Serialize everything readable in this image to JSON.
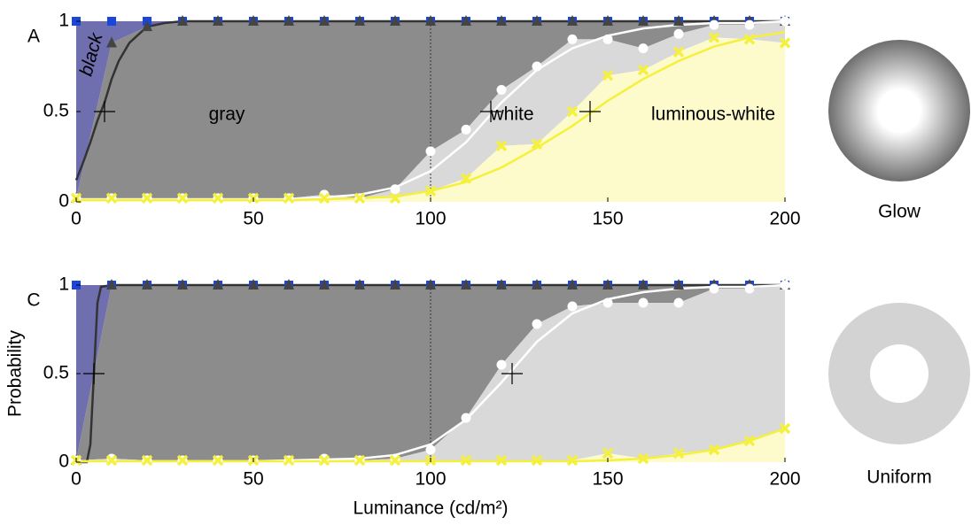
{
  "chart_data": [
    {
      "type": "line",
      "panel_label": "A",
      "x": [
        0,
        10,
        20,
        30,
        40,
        50,
        60,
        70,
        80,
        90,
        100,
        110,
        120,
        130,
        140,
        150,
        160,
        170,
        180,
        190,
        200
      ],
      "xlim": [
        0,
        200
      ],
      "xticks": [
        0,
        50,
        100,
        150,
        200
      ],
      "ylim": [
        0,
        1
      ],
      "yticks": [
        0,
        0.5,
        1
      ],
      "reference_x": 100,
      "fills": [
        "#6f6fb0",
        "#8c8c8c",
        "#d9d9d9",
        "#fdfbcb"
      ],
      "series": [
        {
          "marker": "square",
          "color": "#1a46dc",
          "values": [
            1,
            1,
            1,
            1,
            1,
            1,
            1,
            1,
            1,
            1,
            1,
            1,
            1,
            1,
            1,
            1,
            1,
            1,
            1,
            1,
            1
          ]
        },
        {
          "marker": "triangle",
          "color": "#444444",
          "values": [
            0.02,
            0.88,
            0.97,
            1,
            1,
            1,
            1,
            1,
            1,
            1,
            1,
            1,
            1,
            1,
            1,
            1,
            1,
            1,
            1,
            1,
            1
          ]
        },
        {
          "marker": "circle",
          "color": "#ffffff",
          "values": [
            0.02,
            0.02,
            0.02,
            0.02,
            0.02,
            0.02,
            0.02,
            0.04,
            0.02,
            0.07,
            0.28,
            0.4,
            0.62,
            0.75,
            0.9,
            0.9,
            0.85,
            0.93,
            0.98,
            0.98,
            1
          ]
        },
        {
          "marker": "cross",
          "color": "#f5f03c",
          "values": [
            0.02,
            0.02,
            0.02,
            0.02,
            0.02,
            0.02,
            0.02,
            0.02,
            0.02,
            0.02,
            0.06,
            0.13,
            0.31,
            0.32,
            0.5,
            0.7,
            0.73,
            0.83,
            0.91,
            0.9,
            0.88
          ]
        }
      ],
      "fits": [
        {
          "color": "#333333",
          "x": [
            0,
            2,
            4,
            6,
            8,
            10,
            12,
            15,
            20,
            25,
            30,
            200
          ],
          "values": [
            0.12,
            0.22,
            0.33,
            0.45,
            0.55,
            0.68,
            0.78,
            0.88,
            0.97,
            0.99,
            1,
            1
          ]
        },
        {
          "color": "#ffffff",
          "x": [
            0,
            10,
            20,
            30,
            40,
            50,
            60,
            70,
            80,
            90,
            100,
            110,
            120,
            130,
            140,
            150,
            160,
            170,
            180,
            190,
            200
          ],
          "values": [
            0.01,
            0.01,
            0.01,
            0.01,
            0.01,
            0.01,
            0.015,
            0.025,
            0.04,
            0.08,
            0.17,
            0.33,
            0.55,
            0.73,
            0.85,
            0.92,
            0.96,
            0.98,
            0.99,
            0.99,
            1
          ]
        },
        {
          "color": "#f5f03c",
          "x": [
            0,
            10,
            20,
            30,
            40,
            50,
            60,
            70,
            80,
            90,
            100,
            110,
            120,
            130,
            140,
            150,
            160,
            170,
            180,
            190,
            200
          ],
          "values": [
            0.01,
            0.01,
            0.01,
            0.01,
            0.01,
            0.01,
            0.01,
            0.015,
            0.02,
            0.03,
            0.06,
            0.11,
            0.19,
            0.3,
            0.42,
            0.56,
            0.68,
            0.78,
            0.86,
            0.91,
            0.94
          ]
        }
      ],
      "thresholds": [
        {
          "x": 8,
          "y": 0.5
        },
        {
          "x": 117,
          "y": 0.5
        },
        {
          "x": 145,
          "y": 0.5
        }
      ],
      "annotations": [
        "black",
        "gray",
        "white",
        "luminous-white"
      ]
    },
    {
      "type": "line",
      "panel_label": "C",
      "ylabel": "Probability",
      "xlabel": "Luminance (cd/m²)",
      "x": [
        0,
        10,
        20,
        30,
        40,
        50,
        60,
        70,
        80,
        90,
        100,
        110,
        120,
        130,
        140,
        150,
        160,
        170,
        180,
        190,
        200
      ],
      "xlim": [
        0,
        200
      ],
      "xticks": [
        0,
        50,
        100,
        150,
        200
      ],
      "ylim": [
        0,
        1
      ],
      "yticks": [
        0,
        0.5,
        1
      ],
      "reference_x": 100,
      "fills": [
        "#6f6fb0",
        "#8c8c8c",
        "#d9d9d9",
        "#fdfbcb"
      ],
      "series": [
        {
          "marker": "square",
          "color": "#1a46dc",
          "values": [
            1,
            1,
            1,
            1,
            1,
            1,
            1,
            1,
            1,
            1,
            1,
            1,
            1,
            1,
            1,
            1,
            1,
            1,
            1,
            1,
            1
          ]
        },
        {
          "marker": "triangle",
          "color": "#444444",
          "values": [
            0.01,
            1,
            1,
            1,
            1,
            1,
            1,
            1,
            1,
            1,
            1,
            1,
            1,
            1,
            1,
            1,
            1,
            1,
            1,
            1,
            1
          ]
        },
        {
          "marker": "circle",
          "color": "#ffffff",
          "values": [
            0.01,
            0.02,
            0.01,
            0.01,
            0.01,
            0.01,
            0.01,
            0.02,
            0.01,
            0.02,
            0.07,
            0.25,
            0.55,
            0.78,
            0.88,
            0.9,
            0.9,
            0.9,
            0.98,
            0.98,
            1
          ]
        },
        {
          "marker": "cross",
          "color": "#f5f03c",
          "values": [
            0.01,
            0.01,
            0.01,
            0.01,
            0.01,
            0.01,
            0.01,
            0.01,
            0.01,
            0.01,
            0.01,
            0.01,
            0.01,
            0.01,
            0.01,
            0.05,
            0.02,
            0.05,
            0.07,
            0.12,
            0.19
          ]
        }
      ],
      "fits": [
        {
          "color": "#333333",
          "x": [
            0,
            3,
            4,
            5,
            6,
            7,
            10,
            200
          ],
          "values": [
            0,
            0,
            0.1,
            0.5,
            0.9,
            0.99,
            1,
            1
          ]
        },
        {
          "color": "#ffffff",
          "x": [
            0,
            10,
            20,
            30,
            40,
            50,
            60,
            70,
            80,
            90,
            100,
            110,
            120,
            130,
            140,
            150,
            160,
            170,
            180,
            190,
            200
          ],
          "values": [
            0.005,
            0.005,
            0.005,
            0.005,
            0.005,
            0.005,
            0.01,
            0.015,
            0.02,
            0.04,
            0.1,
            0.24,
            0.45,
            0.68,
            0.84,
            0.92,
            0.96,
            0.98,
            0.99,
            0.99,
            1
          ]
        },
        {
          "color": "#f5f03c",
          "x": [
            0,
            10,
            20,
            30,
            40,
            50,
            60,
            70,
            80,
            90,
            100,
            110,
            120,
            130,
            140,
            150,
            160,
            170,
            180,
            190,
            200
          ],
          "values": [
            0.005,
            0.005,
            0.005,
            0.005,
            0.005,
            0.005,
            0.005,
            0.005,
            0.005,
            0.005,
            0.005,
            0.005,
            0.005,
            0.005,
            0.005,
            0.01,
            0.02,
            0.04,
            0.07,
            0.12,
            0.19
          ]
        }
      ],
      "thresholds": [
        {
          "x": 5,
          "y": 0.5
        },
        {
          "x": 123,
          "y": 0.5
        }
      ]
    }
  ],
  "stimuli": [
    {
      "label": "Glow",
      "color": "#1f6fb8"
    },
    {
      "label": "Uniform",
      "color": "#e8321a"
    }
  ]
}
